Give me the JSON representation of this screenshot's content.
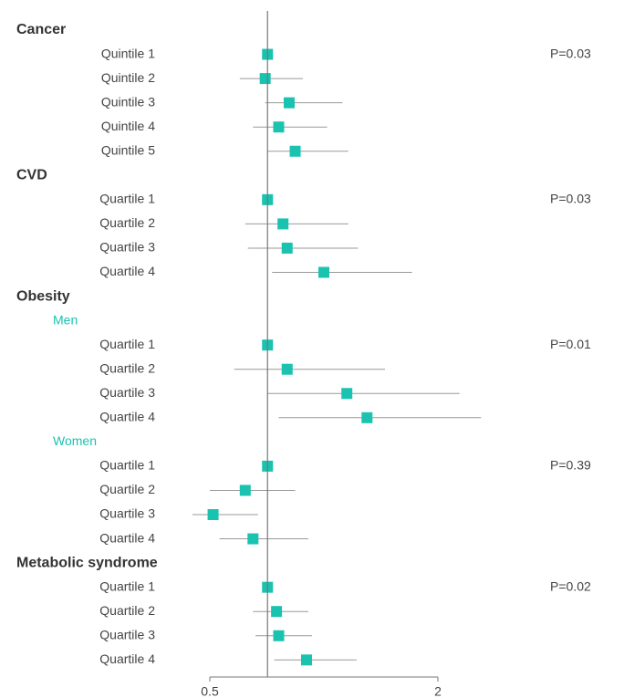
{
  "colors": {
    "marker": "#19c3b0",
    "subgroup": "#19c3b0",
    "ci_line": "#999999",
    "axis": "#777777",
    "text": "#444444"
  },
  "chart_data": {
    "type": "forest",
    "xscale": "log",
    "xlim": [
      0.5,
      2.5
    ],
    "xticks": [
      "0.5",
      "2"
    ],
    "reference": 0.71,
    "rows": [
      {
        "kind": "group",
        "label": "Cancer"
      },
      {
        "kind": "item",
        "label": "Quintile 1",
        "est": 0.71,
        "p": "P=0.03"
      },
      {
        "kind": "item",
        "label": "Quintile 2",
        "est": 0.7,
        "lo": 0.6,
        "hi": 0.88
      },
      {
        "kind": "item",
        "label": "Quintile 3",
        "est": 0.81,
        "lo": 0.7,
        "hi": 1.12
      },
      {
        "kind": "item",
        "label": "Quintile 4",
        "est": 0.76,
        "lo": 0.65,
        "hi": 1.02
      },
      {
        "kind": "item",
        "label": "Quintile 5",
        "est": 0.84,
        "lo": 0.71,
        "hi": 1.16
      },
      {
        "kind": "group",
        "label": "CVD"
      },
      {
        "kind": "item",
        "label": "Quartile 1",
        "est": 0.71,
        "p": "P=0.03"
      },
      {
        "kind": "item",
        "label": "Quartile 2",
        "est": 0.78,
        "lo": 0.62,
        "hi": 1.16
      },
      {
        "kind": "item",
        "label": "Quartile 3",
        "est": 0.8,
        "lo": 0.63,
        "hi": 1.23
      },
      {
        "kind": "item",
        "label": "Quartile 4",
        "est": 1.0,
        "lo": 0.73,
        "hi": 1.71
      },
      {
        "kind": "group",
        "label": "Obesity"
      },
      {
        "kind": "subgroup",
        "label": "Men"
      },
      {
        "kind": "item",
        "label": "Quartile 1",
        "est": 0.71,
        "p": "P=0.01"
      },
      {
        "kind": "item",
        "label": "Quartile 2",
        "est": 0.8,
        "lo": 0.58,
        "hi": 1.45
      },
      {
        "kind": "item",
        "label": "Quartile 3",
        "est": 1.15,
        "lo": 0.71,
        "hi": 2.28
      },
      {
        "kind": "item",
        "label": "Quartile 4",
        "est": 1.3,
        "lo": 0.76,
        "hi": 2.6
      },
      {
        "kind": "subgroup",
        "label": "Women"
      },
      {
        "kind": "item",
        "label": "Quartile 1",
        "est": 0.71,
        "p": "P=0.39"
      },
      {
        "kind": "item",
        "label": "Quartile 2",
        "est": 0.62,
        "lo": 0.5,
        "hi": 0.84
      },
      {
        "kind": "item",
        "label": "Quartile 3",
        "est": 0.51,
        "lo": 0.45,
        "hi": 0.67
      },
      {
        "kind": "item",
        "label": "Quartile 4",
        "est": 0.65,
        "lo": 0.53,
        "hi": 0.91
      },
      {
        "kind": "group",
        "label": "Metabolic syndrome"
      },
      {
        "kind": "item",
        "label": "Quartile 1",
        "est": 0.71,
        "p": "P=0.02"
      },
      {
        "kind": "item",
        "label": "Quartile 2",
        "est": 0.75,
        "lo": 0.65,
        "hi": 0.91
      },
      {
        "kind": "item",
        "label": "Quartile 3",
        "est": 0.76,
        "lo": 0.66,
        "hi": 0.93
      },
      {
        "kind": "item",
        "label": "Quartile 4",
        "est": 0.9,
        "lo": 0.74,
        "hi": 1.22
      }
    ]
  }
}
